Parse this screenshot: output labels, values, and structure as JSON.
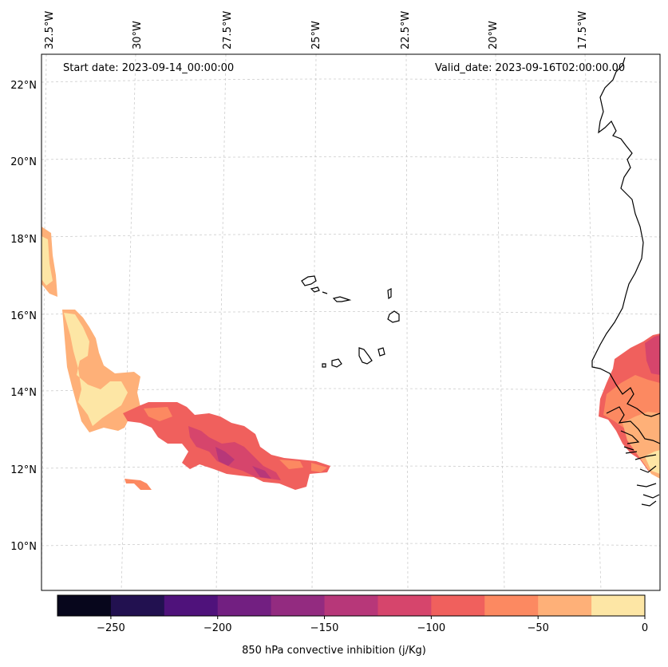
{
  "header": {
    "start_date": "Start date: 2023-09-14_00:00:00",
    "valid_date": "Valid_date: 2023-09-16T02:00:00.00"
  },
  "map": {
    "lon_labels": [
      "32.5°W",
      "30°W",
      "27.5°W",
      "25°W",
      "22.5°W",
      "20°W",
      "17.5°W"
    ],
    "lat_labels": [
      "22°N",
      "20°N",
      "18°N",
      "16°N",
      "14°N",
      "12°N",
      "10°N"
    ],
    "coastline_color": "#000000",
    "grid_color": "#cccccc"
  },
  "colorbar": {
    "label": "850 hPa convective inhibition (j/Kg)",
    "tick_labels": [
      "−250",
      "−200",
      "−150",
      "−100",
      "−50",
      "0"
    ],
    "levels": [
      -275,
      -250,
      -225,
      -200,
      -175,
      -150,
      -125,
      -100,
      -75,
      -50,
      -25,
      0
    ],
    "colors": [
      "#07061c",
      "#221150",
      "#4f127b",
      "#721f81",
      "#932b80",
      "#b73779",
      "#d6456c",
      "#f0605d",
      "#fc8961",
      "#feb078",
      "#fde6a5"
    ]
  },
  "chart_data": {
    "type": "heatmap",
    "title": "850 hPa convective inhibition",
    "units": "j/Kg",
    "range": [
      -275,
      0
    ],
    "regions": [
      {
        "name": "far western edge near 17.5°N",
        "value_range": [
          -50,
          0
        ]
      },
      {
        "name": "western band 13–16°N",
        "value_range": [
          -75,
          0
        ]
      },
      {
        "name": "central band 11.5–13.5°N",
        "value_range": [
          -150,
          -50
        ]
      },
      {
        "name": "West African coast 12–15.5°N",
        "value_range": [
          -125,
          0
        ]
      }
    ]
  }
}
